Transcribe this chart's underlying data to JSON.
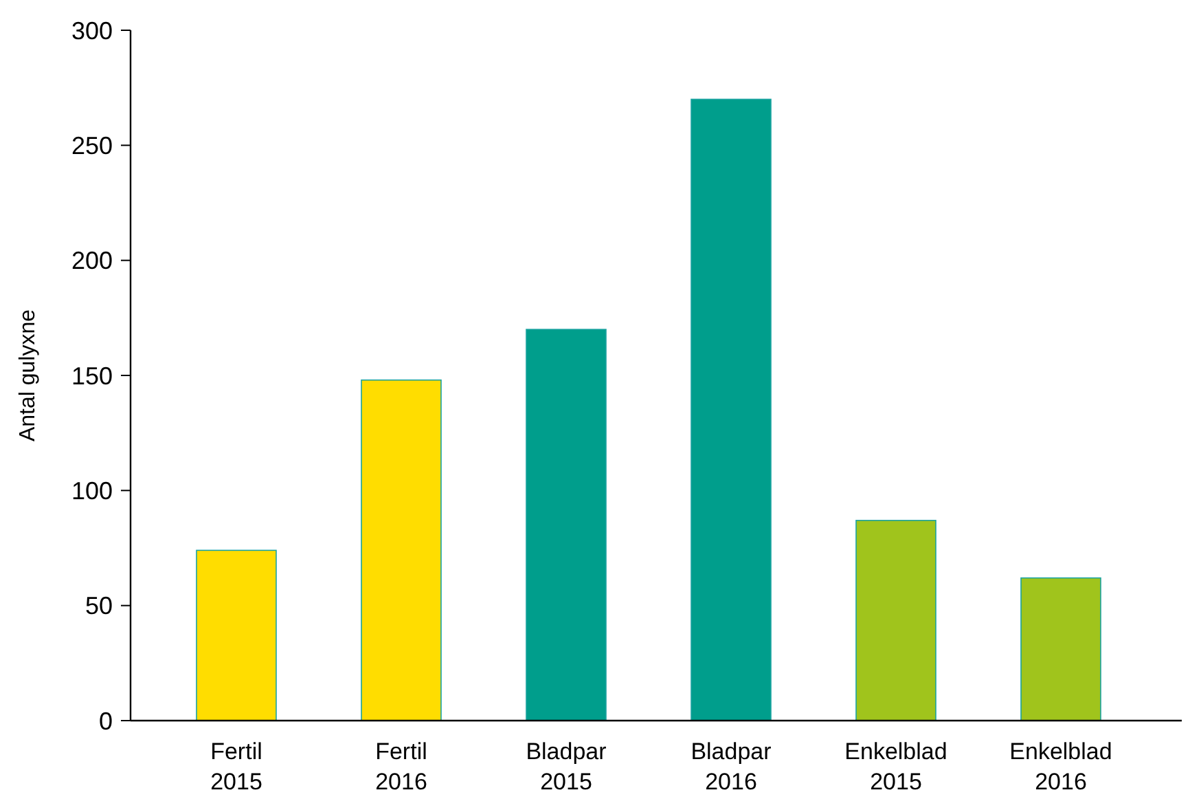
{
  "chart_data": {
    "type": "bar",
    "ylabel": "Antal gulyxne",
    "categories": [
      "Fertil 2015",
      "Fertil 2016",
      "Bladpar 2015",
      "Bladpar 2016",
      "Enkelblad 2015",
      "Enkelblad 2016"
    ],
    "values": [
      74,
      148,
      170,
      270,
      87,
      62
    ],
    "colors": [
      "#ffdd00",
      "#ffdd00",
      "#009e8c",
      "#009e8c",
      "#a0c41c",
      "#a0c41c"
    ],
    "ylim": [
      0,
      300
    ],
    "yticks": [
      0,
      50,
      100,
      150,
      200,
      250,
      300
    ],
    "grid": false
  }
}
